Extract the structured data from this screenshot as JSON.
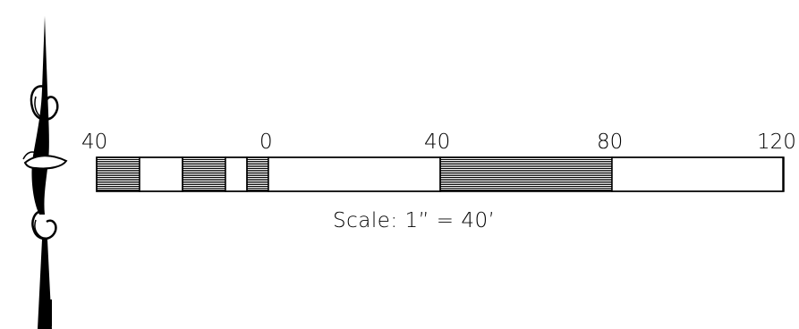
{
  "scale_bar": {
    "tick_labels": [
      "40",
      "0",
      "40",
      "80",
      "120"
    ],
    "caption": "Scale: 1” = 40’",
    "segments": [
      {
        "from": 40,
        "to": 30,
        "fill": "hatched"
      },
      {
        "from": 30,
        "to": 20,
        "fill": "blank"
      },
      {
        "from": 20,
        "to": 10,
        "fill": "hatched"
      },
      {
        "from": 10,
        "to": 5,
        "fill": "blank"
      },
      {
        "from": 5,
        "to": 0,
        "fill": "hatched"
      },
      {
        "from": 0,
        "to": 40,
        "fill": "blank"
      },
      {
        "from": 40,
        "to": 80,
        "fill": "hatched"
      },
      {
        "from": 80,
        "to": 120,
        "fill": "blank"
      }
    ]
  },
  "north_arrow": {
    "icon": "north-arrow-icon"
  },
  "colors": {
    "ink": "#000000",
    "paper": "#ffffff"
  }
}
